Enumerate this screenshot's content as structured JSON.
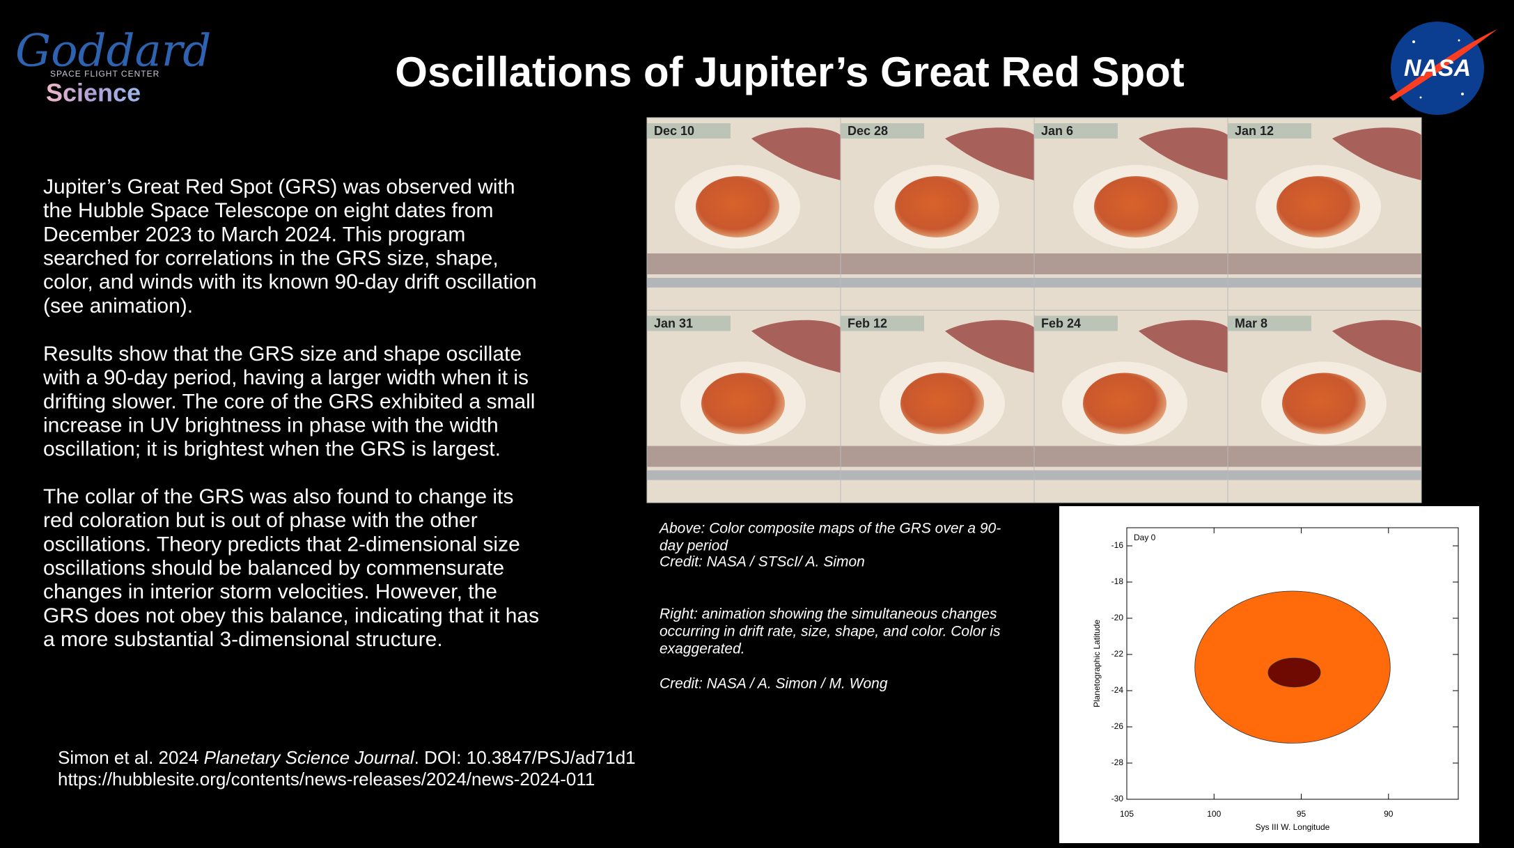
{
  "header": {
    "title": "Oscillations of Jupiter’s Great Red Spot"
  },
  "logos": {
    "left": {
      "name": "Goddard",
      "subtitle": "SPACE FLIGHT CENTER",
      "science": "Science"
    },
    "right": {
      "name": "NASA"
    }
  },
  "body": {
    "paragraphs": [
      [
        "Jupiter’s Great Red Spot (GRS) was observed with",
        "the Hubble Space Telescope on eight dates from",
        "December 2023 to March 2024.  This program",
        "searched for correlations in the GRS size, shape,",
        "color, and winds with its known 90-day drift oscillation",
        "(see animation)."
      ],
      [
        "Results show that the GRS size and shape oscillate",
        "with a 90-day period, having a larger width when it is",
        "drifting slower. The core of the GRS exhibited a small",
        "increase in UV brightness in phase with the width",
        "oscillation; it is brightest when the GRS is largest."
      ],
      [
        "The collar of the GRS was also found to change its",
        "red coloration but is out of phase with the other",
        "oscillations.  Theory predicts that 2-dimensional size",
        "oscillations should be balanced by commensurate",
        "changes in interior storm velocities.  However, the",
        "GRS does not obey this balance, indicating that it has",
        "a more substantial 3-dimensional structure."
      ]
    ]
  },
  "gallery": {
    "labels": [
      "Dec 10",
      "Dec 28",
      "Jan 6",
      "Jan 12",
      "Jan 31",
      "Feb 12",
      "Feb 24",
      "Mar 8"
    ]
  },
  "captions": {
    "above": [
      "Above: Color composite maps of the GRS over a 90-",
      "day period",
      "Credit: NASA / STScI/ A. Simon"
    ],
    "right": [
      "Right: animation showing the simultaneous changes",
      "occurring in drift rate, size, shape, and color. Color is",
      "exaggerated."
    ],
    "right_credit": "Credit: NASA / A. Simon / M. Wong"
  },
  "reference": {
    "line1": [
      "Simon et al. 2024 ",
      "Planetary Science Journal",
      ". DOI: 10.3847/PSJ/ad71d1"
    ],
    "line2": "https://hubblesite.org/contents/news-releases/2024/news-2024-011"
  },
  "chart_data": {
    "type": "ellipse",
    "annotation": "Day 0",
    "x_label": "Sys III W. Longitude",
    "y_label": "Planetographic Latitude",
    "xlim": [
      105,
      86
    ],
    "ylim": [
      -30,
      -15
    ],
    "xticks": [
      105,
      100,
      95,
      90
    ],
    "yticks": [
      -16,
      -18,
      -20,
      -22,
      -24,
      -26,
      -28,
      -30
    ],
    "grid": false,
    "ellipses": [
      {
        "x": 95.5,
        "y": -22.7,
        "width": 11.2,
        "height": 8.4,
        "color": "#ff6a0a"
      },
      {
        "x": 95.4,
        "y": -23.0,
        "width": 3.0,
        "height": 1.6,
        "color": "#6e0a02"
      }
    ]
  }
}
